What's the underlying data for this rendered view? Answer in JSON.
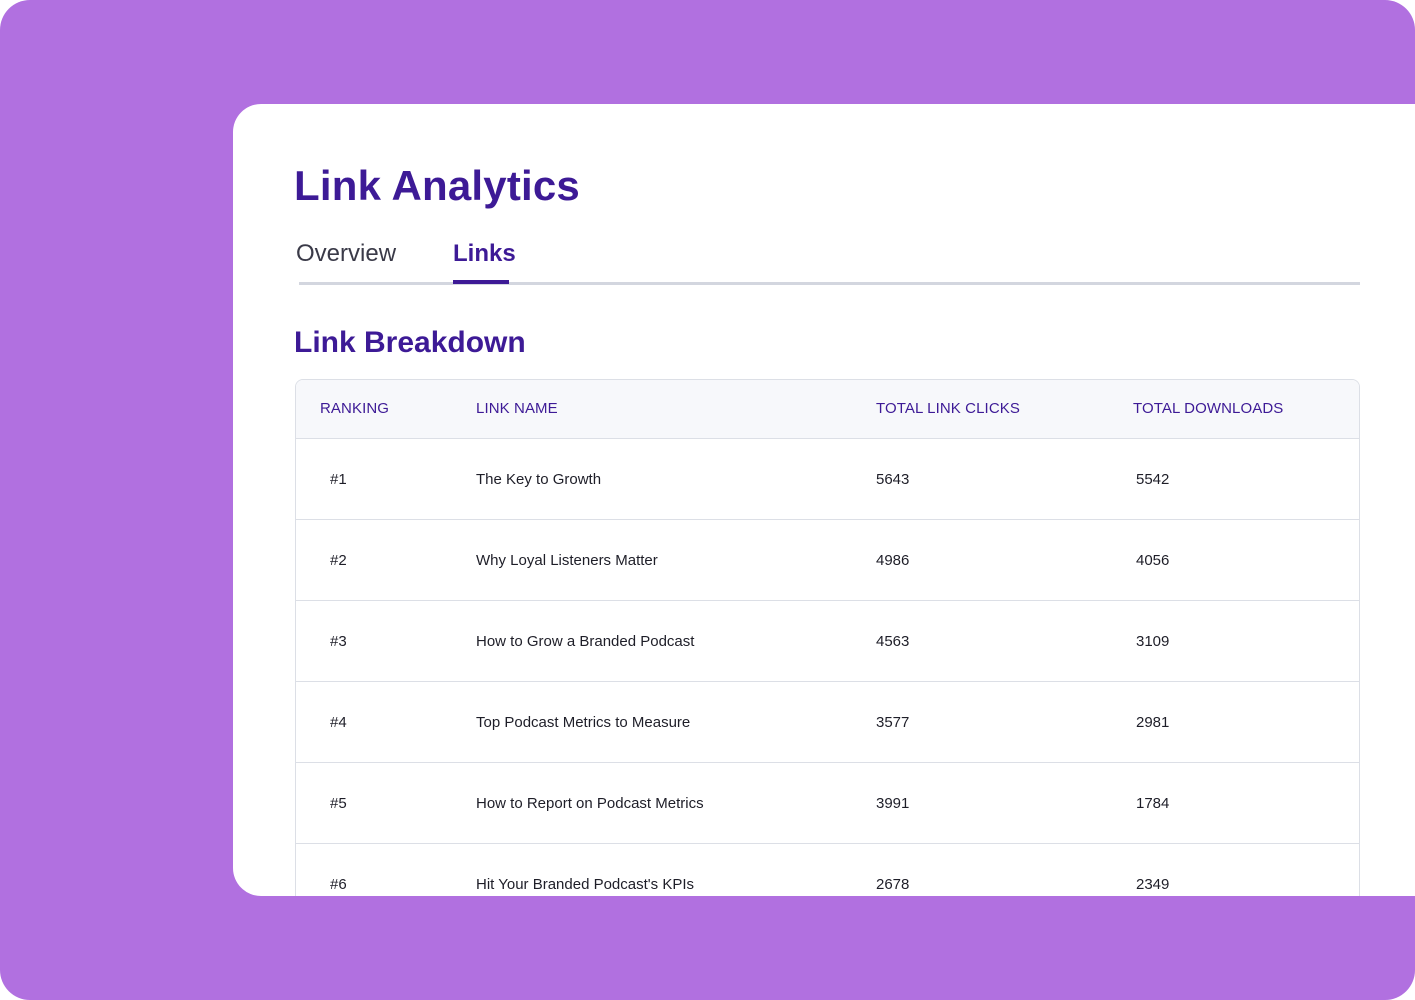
{
  "page": {
    "title": "Link Analytics"
  },
  "tabs": [
    {
      "label": "Overview",
      "active": false
    },
    {
      "label": "Links",
      "active": true
    }
  ],
  "section": {
    "title": "Link Breakdown"
  },
  "table": {
    "columns": {
      "ranking": "RANKING",
      "link_name": "LINK NAME",
      "total_link_clicks": "TOTAL LINK CLICKS",
      "total_downloads": "TOTAL DOWNLOADS"
    },
    "rows": [
      {
        "rank": "#1",
        "name": "The Key to Growth",
        "clicks": "5643",
        "downloads": "5542"
      },
      {
        "rank": "#2",
        "name": "Why Loyal Listeners Matter",
        "clicks": "4986",
        "downloads": "4056"
      },
      {
        "rank": "#3",
        "name": "How to Grow a Branded Podcast",
        "clicks": "4563",
        "downloads": "3109"
      },
      {
        "rank": "#4",
        "name": "Top Podcast Metrics to Measure",
        "clicks": "3577",
        "downloads": "2981"
      },
      {
        "rank": "#5",
        "name": "How to Report on Podcast Metrics",
        "clicks": "3991",
        "downloads": "1784"
      },
      {
        "rank": "#6",
        "name": "Hit Your Branded Podcast's KPIs",
        "clicks": "2678",
        "downloads": "2349"
      }
    ]
  },
  "colors": {
    "background": "#b170e0",
    "accent": "#3d1a96",
    "card": "#ffffff",
    "table_header_bg": "#f7f8fb",
    "border": "#dcdfe6"
  }
}
